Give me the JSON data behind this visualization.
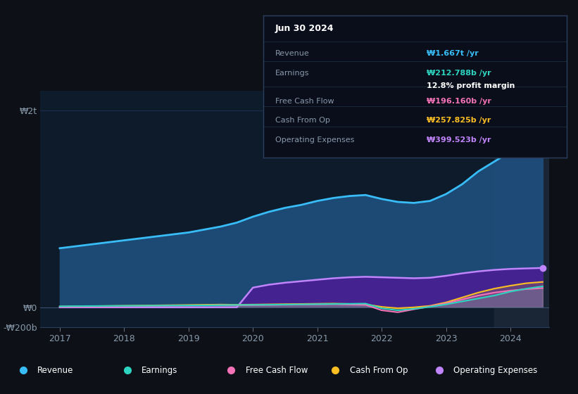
{
  "background_color": "#0d1117",
  "plot_bg_color": "#0d1b2a",
  "highlight_bg": "#1a2535",
  "grid_color": "#1e3050",
  "title_text": "Jun 30 2024",
  "tooltip": {
    "Revenue": {
      "value": "₩1.667t",
      "unit": "/yr",
      "color": "#38bdf8"
    },
    "Earnings": {
      "value": "₩212.788b",
      "unit": "/yr",
      "color": "#2dd4bf"
    },
    "profit_margin": "12.8% profit margin",
    "Free Cash Flow": {
      "value": "₩196.160b",
      "unit": "/yr",
      "color": "#f472b6"
    },
    "Cash From Op": {
      "value": "₩257.825b",
      "unit": "/yr",
      "color": "#fbbf24"
    },
    "Operating Expenses": {
      "value": "₩399.523b",
      "unit": "/yr",
      "color": "#c084fc"
    }
  },
  "x_years": [
    2017.0,
    2017.25,
    2017.5,
    2017.75,
    2018.0,
    2018.25,
    2018.5,
    2018.75,
    2019.0,
    2019.25,
    2019.5,
    2019.75,
    2020.0,
    2020.25,
    2020.5,
    2020.75,
    2021.0,
    2021.25,
    2021.5,
    2021.75,
    2022.0,
    2022.25,
    2022.5,
    2022.75,
    2023.0,
    2023.25,
    2023.5,
    2023.75,
    2024.0,
    2024.25,
    2024.5
  ],
  "revenue": [
    600,
    620,
    640,
    660,
    680,
    700,
    720,
    740,
    760,
    790,
    820,
    860,
    920,
    970,
    1010,
    1040,
    1080,
    1110,
    1130,
    1140,
    1100,
    1070,
    1060,
    1080,
    1150,
    1250,
    1380,
    1480,
    1580,
    1650,
    1667
  ],
  "earnings": [
    10,
    12,
    13,
    14,
    15,
    16,
    17,
    18,
    19,
    20,
    22,
    24,
    25,
    26,
    28,
    30,
    32,
    34,
    36,
    38,
    -10,
    -30,
    -15,
    5,
    30,
    60,
    90,
    120,
    160,
    190,
    213
  ],
  "free_cash_flow": [
    5,
    6,
    7,
    8,
    10,
    12,
    14,
    16,
    18,
    20,
    22,
    20,
    22,
    24,
    26,
    28,
    30,
    32,
    28,
    25,
    -30,
    -50,
    -20,
    10,
    40,
    80,
    120,
    150,
    170,
    185,
    196
  ],
  "cash_from_op": [
    8,
    10,
    12,
    14,
    16,
    18,
    20,
    22,
    24,
    26,
    28,
    26,
    28,
    30,
    32,
    34,
    36,
    38,
    34,
    30,
    5,
    -10,
    0,
    15,
    50,
    100,
    150,
    190,
    220,
    245,
    258
  ],
  "operating_expenses": [
    0,
    0,
    0,
    0,
    0,
    0,
    0,
    0,
    0,
    0,
    0,
    0,
    200,
    230,
    250,
    265,
    280,
    295,
    305,
    310,
    305,
    300,
    295,
    300,
    320,
    345,
    365,
    380,
    390,
    395,
    400
  ],
  "ylim": [
    -200,
    2200
  ],
  "yticks": [
    -200,
    0,
    2000
  ],
  "ytick_labels": [
    "-₩200b",
    "₩0",
    "₩2t"
  ],
  "xticks": [
    2017,
    2018,
    2019,
    2020,
    2021,
    2022,
    2023,
    2024
  ],
  "revenue_color": "#38bdf8",
  "revenue_fill": "#1e4d7a",
  "earnings_color": "#2dd4bf",
  "fcf_color": "#f472b6",
  "cashop_color": "#fbbf24",
  "opex_color": "#c084fc",
  "opex_fill": "#4c1d95",
  "highlight_x_start": 2023.75,
  "highlight_x_end": 2024.6,
  "xlim": [
    2016.7,
    2024.6
  ],
  "legend_items": [
    {
      "label": "Revenue",
      "color": "#38bdf8"
    },
    {
      "label": "Earnings",
      "color": "#2dd4bf"
    },
    {
      "label": "Free Cash Flow",
      "color": "#f472b6"
    },
    {
      "label": "Cash From Op",
      "color": "#fbbf24"
    },
    {
      "label": "Operating Expenses",
      "color": "#c084fc"
    }
  ]
}
